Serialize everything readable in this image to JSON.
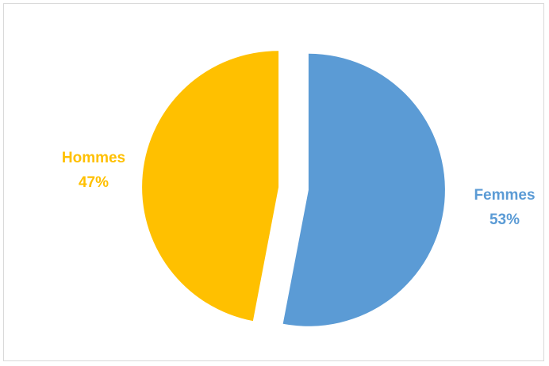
{
  "chart_data": {
    "type": "pie",
    "title": "",
    "categories": [
      "Femmes",
      "Hommes"
    ],
    "values": [
      53,
      47
    ],
    "value_labels": [
      "53%",
      "47%"
    ],
    "colors": [
      "#5B9BD5",
      "#FFC000"
    ],
    "exploded": true,
    "legend": "none"
  }
}
